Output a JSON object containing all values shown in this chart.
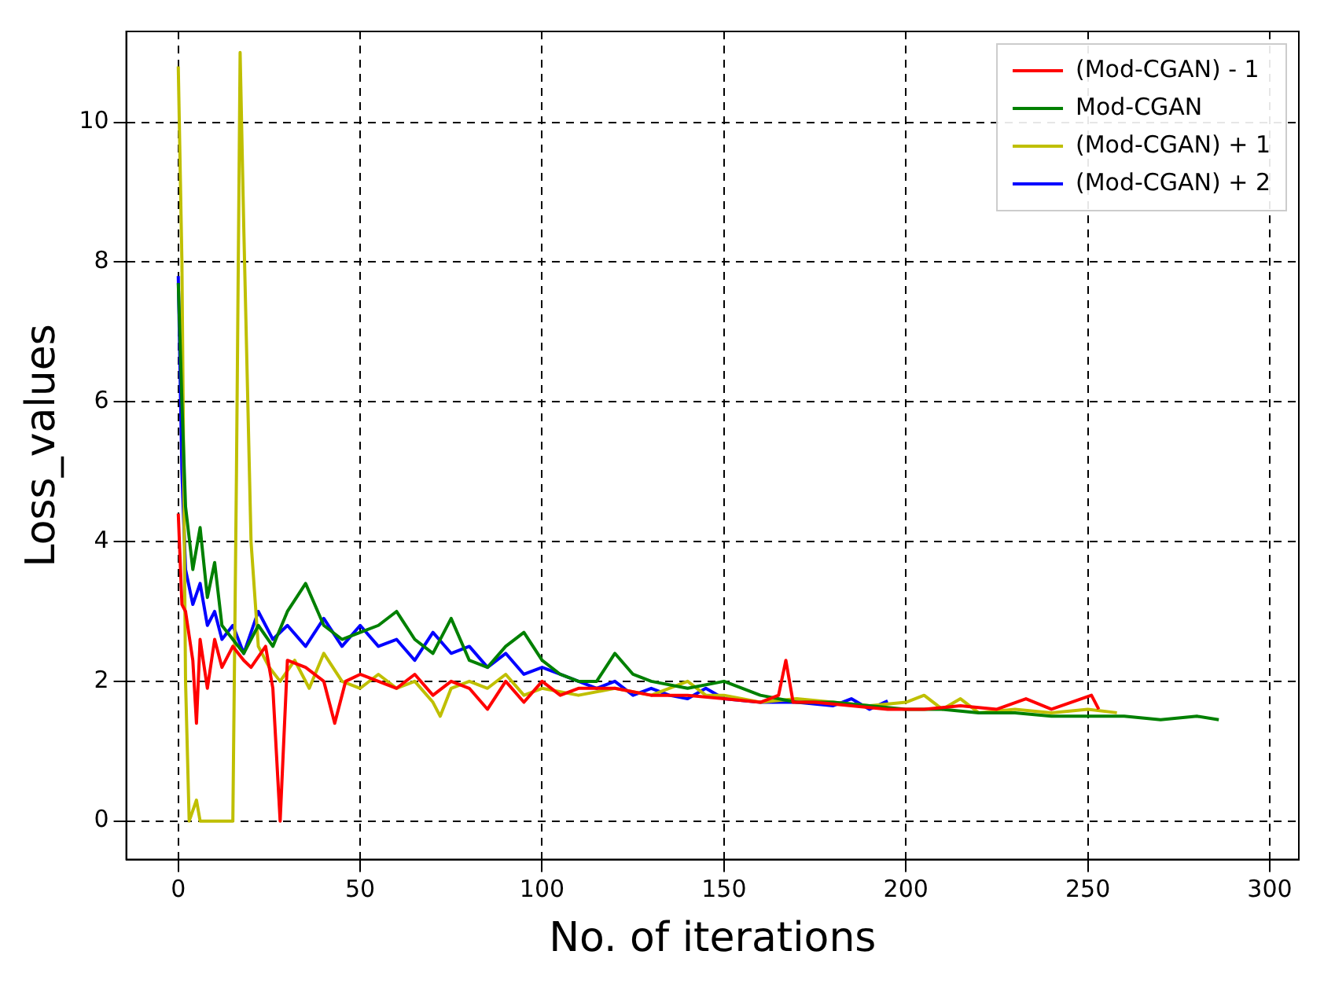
{
  "chart_data": {
    "type": "line",
    "xlabel": "No. of iterations",
    "ylabel": "Loss_values",
    "xlim": [
      -14.3,
      308
    ],
    "ylim": [
      -0.55,
      11.3
    ],
    "xticks": [
      0,
      50,
      100,
      150,
      200,
      250,
      300
    ],
    "yticks": [
      0,
      2,
      4,
      6,
      8,
      10
    ],
    "grid": true,
    "legend": "top right",
    "marker": "none",
    "line_style": "solid",
    "series": [
      {
        "name": "(Mod-CGAN) - 1",
        "color": "#ff0000",
        "x": [
          0,
          1,
          2,
          4,
          5,
          6,
          8,
          10,
          12,
          15,
          18,
          20,
          24,
          26,
          28,
          30,
          35,
          40,
          43,
          46,
          50,
          55,
          60,
          65,
          70,
          75,
          80,
          85,
          90,
          95,
          100,
          105,
          110,
          120,
          130,
          140,
          150,
          160,
          165,
          167,
          169,
          175,
          185,
          195,
          205,
          215,
          225,
          233,
          240,
          251,
          253
        ],
        "values": [
          4.4,
          3.1,
          3.0,
          2.3,
          1.4,
          2.6,
          1.9,
          2.6,
          2.2,
          2.5,
          2.3,
          2.2,
          2.5,
          1.9,
          0.0,
          2.3,
          2.2,
          2.0,
          1.4,
          2.0,
          2.1,
          2.0,
          1.9,
          2.1,
          1.8,
          2.0,
          1.9,
          1.6,
          2.0,
          1.7,
          2.0,
          1.8,
          1.9,
          1.9,
          1.8,
          1.8,
          1.75,
          1.7,
          1.8,
          2.3,
          1.7,
          1.7,
          1.65,
          1.6,
          1.6,
          1.65,
          1.6,
          1.75,
          1.6,
          1.8,
          1.6
        ]
      },
      {
        "name": "Mod-CGAN",
        "color": "#008000",
        "x": [
          0,
          1,
          2,
          4,
          6,
          8,
          10,
          12,
          15,
          18,
          22,
          26,
          30,
          35,
          40,
          45,
          50,
          55,
          60,
          65,
          70,
          75,
          80,
          85,
          90,
          95,
          100,
          105,
          110,
          115,
          120,
          125,
          130,
          140,
          150,
          160,
          170,
          180,
          190,
          200,
          210,
          220,
          230,
          240,
          250,
          260,
          270,
          280,
          286
        ],
        "values": [
          7.7,
          6.0,
          4.5,
          3.6,
          4.2,
          3.2,
          3.7,
          2.8,
          2.6,
          2.4,
          2.8,
          2.5,
          3.0,
          3.4,
          2.8,
          2.6,
          2.7,
          2.8,
          3.0,
          2.6,
          2.4,
          2.9,
          2.3,
          2.2,
          2.5,
          2.7,
          2.3,
          2.1,
          2.0,
          2.0,
          2.4,
          2.1,
          2.0,
          1.9,
          2.0,
          1.8,
          1.7,
          1.7,
          1.65,
          1.6,
          1.6,
          1.55,
          1.55,
          1.5,
          1.5,
          1.5,
          1.45,
          1.5,
          1.45
        ]
      },
      {
        "name": "(Mod-CGAN) + 1",
        "color": "#bfbf00",
        "x": [
          0,
          1,
          2,
          3,
          5,
          6,
          15,
          16,
          17,
          18,
          20,
          22,
          25,
          28,
          32,
          36,
          40,
          45,
          50,
          55,
          60,
          65,
          70,
          72,
          75,
          80,
          85,
          90,
          95,
          100,
          110,
          120,
          130,
          140,
          145,
          150,
          160,
          170,
          180,
          190,
          200,
          205,
          210,
          215,
          220,
          230,
          240,
          250,
          258
        ],
        "values": [
          10.8,
          8.0,
          2.0,
          0,
          0.3,
          0,
          0,
          5,
          11.0,
          8.5,
          4.0,
          2.5,
          2.2,
          2.0,
          2.3,
          1.9,
          2.4,
          2.0,
          1.9,
          2.1,
          1.9,
          2.0,
          1.7,
          1.5,
          1.9,
          2.0,
          1.9,
          2.1,
          1.8,
          1.9,
          1.8,
          1.9,
          1.8,
          2.0,
          1.8,
          1.8,
          1.7,
          1.75,
          1.7,
          1.65,
          1.7,
          1.8,
          1.6,
          1.75,
          1.55,
          1.6,
          1.55,
          1.6,
          1.55
        ]
      },
      {
        "name": "(Mod-CGAN) + 2",
        "color": "#0000ff",
        "x": [
          0,
          1,
          2,
          4,
          6,
          8,
          10,
          12,
          15,
          18,
          22,
          26,
          30,
          35,
          40,
          45,
          50,
          55,
          60,
          65,
          70,
          75,
          80,
          85,
          90,
          95,
          100,
          105,
          110,
          115,
          120,
          125,
          130,
          135,
          140,
          145,
          150,
          160,
          170,
          180,
          185,
          190,
          195
        ],
        "values": [
          7.8,
          5.0,
          3.6,
          3.1,
          3.4,
          2.8,
          3.0,
          2.6,
          2.8,
          2.4,
          3.0,
          2.6,
          2.8,
          2.5,
          2.9,
          2.5,
          2.8,
          2.5,
          2.6,
          2.3,
          2.7,
          2.4,
          2.5,
          2.2,
          2.4,
          2.1,
          2.2,
          2.1,
          2.0,
          1.9,
          2.0,
          1.8,
          1.9,
          1.8,
          1.75,
          1.9,
          1.75,
          1.7,
          1.7,
          1.65,
          1.75,
          1.6,
          1.72
        ]
      }
    ]
  }
}
